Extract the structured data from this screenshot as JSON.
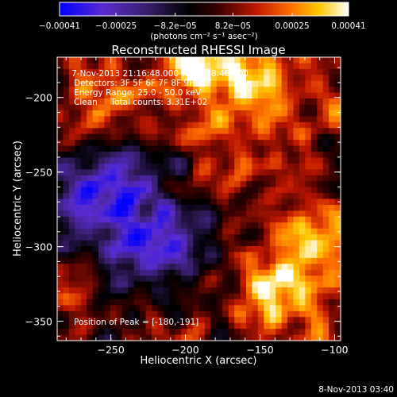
{
  "chart_data": {
    "type": "heatmap",
    "title": "Reconstructed RHESSI Image",
    "xlabel": "Heliocentric X (arcsec)",
    "ylabel": "Heliocentric Y (arcsec)",
    "xlim": [
      -286,
      -96
    ],
    "ylim": [
      -363,
      -173
    ],
    "x_ticks": [
      -250,
      -200,
      -150,
      -100
    ],
    "x_tick_labels": [
      "−250",
      "−200",
      "−150",
      "−100"
    ],
    "y_ticks": [
      -200,
      -250,
      -300,
      -350
    ],
    "y_tick_labels": [
      "−200",
      "−250",
      "−300",
      "−350"
    ],
    "colorbar": {
      "range": [
        -0.00041,
        0.00041
      ],
      "ticks": [
        -0.00041,
        -0.00025,
        -8.2e-05,
        8.2e-05,
        0.00025,
        0.00041
      ],
      "tick_labels": [
        "−0.00041",
        "−0.00025",
        "−8.2e−05",
        "8.2e−05",
        "0.00025",
        "0.00041"
      ],
      "unit_label": "(photons cm⁻² s⁻¹ asec⁻²)",
      "stops": [
        "#0000ff",
        "#6a2ecf",
        "#3a1f6e",
        "#000000",
        "#7a0000",
        "#e03000",
        "#ff9000",
        "#ffd000",
        "#ffffff"
      ]
    },
    "annotations": {
      "time_range": "7-Nov-2013 21:16:48.000 to 21:18:48.000",
      "detectors": "Detectors: 3F 5F 6F 7F 8F 9F 10F",
      "energy_range": "Energy Range: 25.0 - 50.0 keV",
      "clean_counts": "Clean     Total counts: 3.31E+02",
      "peak_position": "Position of Peak = [-180,-191]"
    },
    "footer_timestamp": "8-Nov-2013 03:40",
    "grid": false
  }
}
